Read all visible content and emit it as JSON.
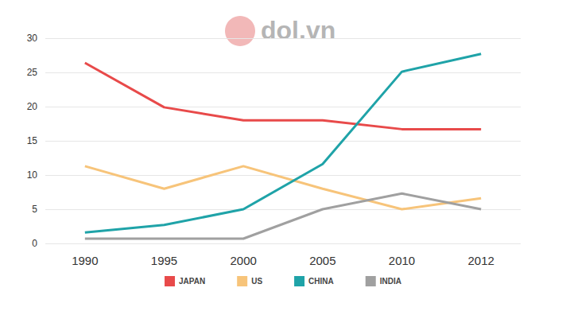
{
  "chart_data": {
    "type": "line",
    "annotation": "dol.vn",
    "categories": [
      "1990",
      "1995",
      "2000",
      "2005",
      "2010",
      "2012"
    ],
    "series": [
      {
        "name": "JAPAN",
        "color": "#e84a4a",
        "values": [
          26.4,
          19.9,
          18,
          18,
          16.7,
          16.7
        ]
      },
      {
        "name": "US",
        "color": "#f7c47a",
        "values": [
          11.3,
          8,
          11.3,
          8,
          5,
          6.6
        ]
      },
      {
        "name": "CHINA",
        "color": "#1fa3a8",
        "values": [
          1.6,
          2.7,
          5,
          11.6,
          25.1,
          27.7
        ]
      },
      {
        "name": "INDIA",
        "color": "#a0a0a0",
        "values": [
          0.7,
          0.7,
          0.7,
          5,
          7.3,
          5
        ]
      }
    ],
    "ylim": [
      0,
      30
    ],
    "yticks": [
      0,
      5,
      10,
      15,
      20,
      25,
      30
    ],
    "grid": true,
    "legend": "bottom",
    "marker": "none"
  }
}
